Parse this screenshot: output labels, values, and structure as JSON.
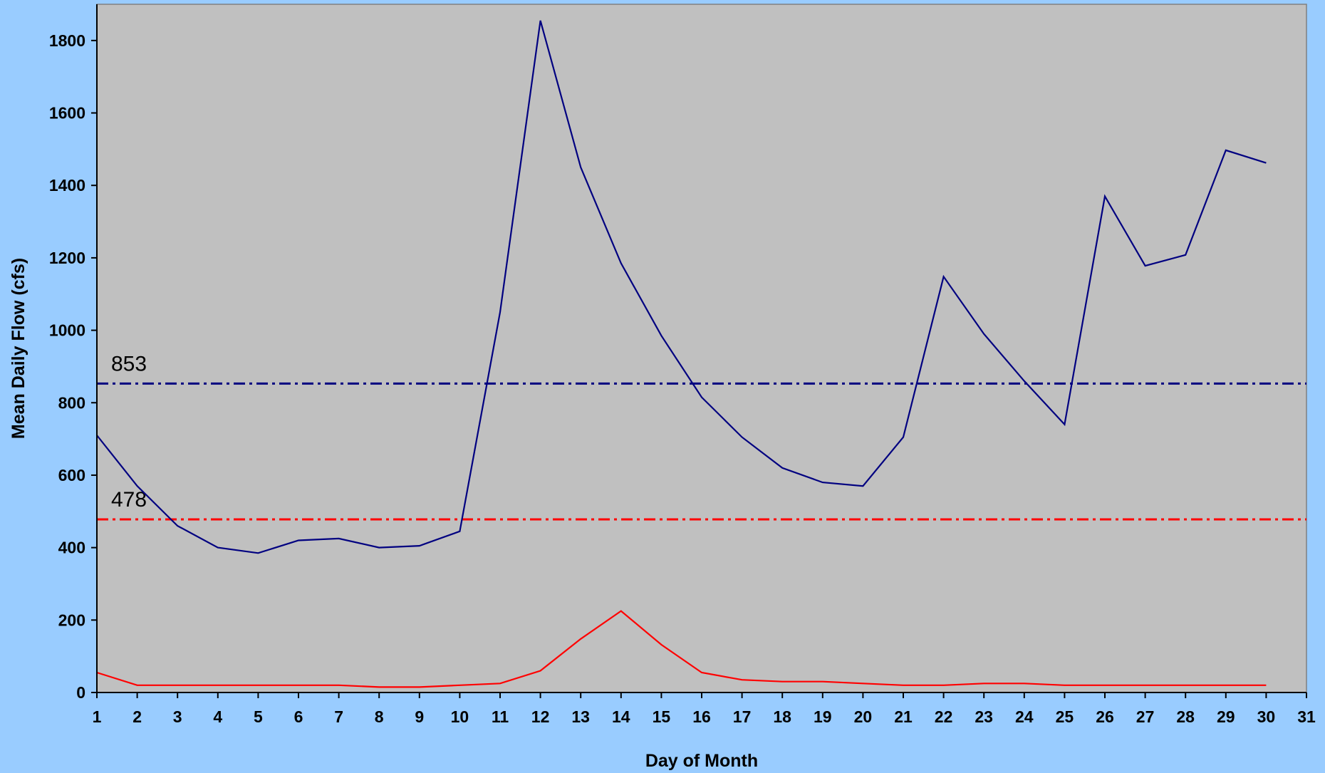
{
  "chart_data": {
    "type": "line",
    "title": "",
    "xlabel": "Day of Month",
    "ylabel": "Mean Daily Flow (cfs)",
    "xlim": [
      1,
      31
    ],
    "ylim": [
      0,
      1900
    ],
    "x_ticks": [
      1,
      2,
      3,
      4,
      5,
      6,
      7,
      8,
      9,
      10,
      11,
      12,
      13,
      14,
      15,
      16,
      17,
      18,
      19,
      20,
      21,
      22,
      23,
      24,
      25,
      26,
      27,
      28,
      29,
      30,
      31
    ],
    "y_ticks": [
      0,
      200,
      400,
      600,
      800,
      1000,
      1200,
      1400,
      1600,
      1800
    ],
    "grid": false,
    "legend": "none",
    "plot_background": "#c0c0c0",
    "page_background": "#99ccff",
    "series": [
      {
        "color": "#000080",
        "x": [
          1,
          2,
          3,
          4,
          5,
          6,
          7,
          8,
          9,
          10,
          11,
          12,
          13,
          14,
          15,
          16,
          17,
          18,
          19,
          20,
          21,
          22,
          23,
          24,
          25,
          26,
          27,
          28,
          29,
          30
        ],
        "values": [
          710,
          570,
          460,
          400,
          385,
          420,
          425,
          400,
          405,
          445,
          1050,
          1855,
          1450,
          1185,
          985,
          815,
          705,
          620,
          580,
          570,
          705,
          1148,
          990,
          860,
          740,
          1370,
          1178,
          1208,
          1497,
          1462
        ]
      },
      {
        "color": "#ff0000",
        "x": [
          1,
          2,
          3,
          4,
          5,
          6,
          7,
          8,
          9,
          10,
          11,
          12,
          13,
          14,
          15,
          16,
          17,
          18,
          19,
          20,
          21,
          22,
          23,
          24,
          25,
          26,
          27,
          28,
          29,
          30
        ],
        "values": [
          55,
          20,
          20,
          20,
          20,
          20,
          20,
          15,
          15,
          20,
          25,
          60,
          148,
          225,
          132,
          55,
          35,
          30,
          30,
          25,
          20,
          20,
          25,
          25,
          20,
          20,
          20,
          20,
          20,
          20
        ]
      }
    ],
    "reference_lines": [
      {
        "value": 853,
        "label": "853",
        "color": "#000080",
        "style": "dash-dot"
      },
      {
        "value": 478,
        "label": "478",
        "color": "#ff0000",
        "style": "dash-dot"
      }
    ]
  }
}
